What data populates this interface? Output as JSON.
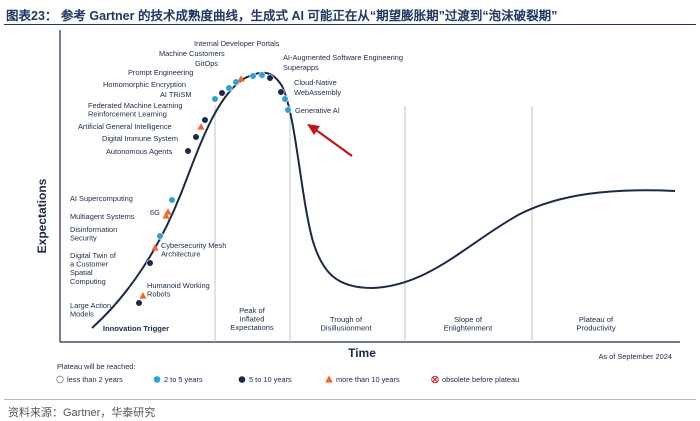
{
  "caption": "图表23：  参考 Gartner 的技术成熟度曲线，生成式 AI 可能正在从“期望膨胀期”过渡到“泡沫破裂期”",
  "source": "资料来源：Gartner，华泰研究",
  "colors": {
    "curve": "#1b2a4a",
    "two_to_five": "#2e9fd8",
    "five_to_ten": "#1b2a4a",
    "more_than_ten": "#f26522",
    "arrow": "#c0141c",
    "phase_divider": "#b8b8b8"
  },
  "chart_data": {
    "type": "scatter",
    "title": "",
    "xlabel": "Time",
    "ylabel": "Expectations",
    "as_of": "As of September 2024",
    "phases": [
      {
        "key": "innovation",
        "lines": [
          "Innovation Trigger"
        ]
      },
      {
        "key": "peak",
        "lines": [
          "Peak of",
          "Inflated",
          "Expectations"
        ]
      },
      {
        "key": "trough",
        "lines": [
          "Trough of",
          "Disillusionment"
        ]
      },
      {
        "key": "slope",
        "lines": [
          "Slope of",
          "Enlightenment"
        ]
      },
      {
        "key": "plateau",
        "lines": [
          "Plateau of",
          "Productivity"
        ]
      }
    ],
    "legend_title": "Plateau will be reached:",
    "legend": [
      {
        "key": "lt2",
        "label": "less than 2 years",
        "symbol": "open-circle"
      },
      {
        "key": "2to5",
        "label": "2 to 5 years",
        "symbol": "blue-dot"
      },
      {
        "key": "5to10",
        "label": "5 to 10 years",
        "symbol": "navy-dot"
      },
      {
        "key": "gt10",
        "label": "more than 10 years",
        "symbol": "orange-triangle"
      },
      {
        "key": "obsolete",
        "label": "obsolete before plateau",
        "symbol": "crossed-circle"
      }
    ],
    "technologies": [
      {
        "name": "Large Action Models",
        "lines": [
          "Large Action",
          "Models"
        ],
        "phase": "innovation",
        "category": "5to10"
      },
      {
        "name": "Humanoid Working Robots",
        "lines": [
          "Humanoid Working",
          "Robots"
        ],
        "phase": "innovation",
        "category": "gt10"
      },
      {
        "name": "Digital Twin of a Customer Spatial Computing",
        "lines": [
          "Digital Twin of",
          "a Customer",
          "Spatial",
          "Computing"
        ],
        "phase": "innovation",
        "category": "5to10"
      },
      {
        "name": "Cybersecurity Mesh Architecture",
        "lines": [
          "Cybersecurity Mesh",
          "Architecture"
        ],
        "phase": "innovation",
        "category": "gt10"
      },
      {
        "name": "Disinformation Security",
        "lines": [
          "Disinformation",
          "Security"
        ],
        "phase": "innovation",
        "category": "2to5"
      },
      {
        "name": "Multiagent Systems",
        "lines": [
          "Multiagent Systems"
        ],
        "phase": "innovation",
        "category": "gt10"
      },
      {
        "name": "6G",
        "lines": [
          "6G"
        ],
        "phase": "innovation",
        "category": "gt10"
      },
      {
        "name": "AI Supercomputing",
        "lines": [
          "AI Supercomputing"
        ],
        "phase": "innovation",
        "category": "2to5"
      },
      {
        "name": "Autonomous Agents",
        "lines": [
          "Autonomous Agents"
        ],
        "phase": "innovation",
        "category": "5to10"
      },
      {
        "name": "Digital Immune System",
        "lines": [
          "Digital Immune System"
        ],
        "phase": "innovation",
        "category": "5to10"
      },
      {
        "name": "Artificial General Intelligence",
        "lines": [
          "Artificial General Intelligence"
        ],
        "phase": "innovation",
        "category": "gt10"
      },
      {
        "name": "Federated Machine Learning Reinforcement Learning",
        "lines": [
          "Federated Machine Learning",
          "Reinforcement Learning"
        ],
        "phase": "peak",
        "category": "5to10"
      },
      {
        "name": "AI TRiSM",
        "lines": [
          "AI TRiSM"
        ],
        "phase": "peak",
        "category": "2to5"
      },
      {
        "name": "Homomorphic Encryption",
        "lines": [
          "Homomorphic Encryption"
        ],
        "phase": "peak",
        "category": "5to10"
      },
      {
        "name": "Prompt Engineering",
        "lines": [
          "Prompt Engineering"
        ],
        "phase": "peak",
        "category": "2to5"
      },
      {
        "name": "GitOps",
        "lines": [
          "GitOps"
        ],
        "phase": "peak",
        "category": "2to5"
      },
      {
        "name": "Machine Customers",
        "lines": [
          "Machine Customers"
        ],
        "phase": "peak",
        "category": "gt10"
      },
      {
        "name": "Internal Developer Portals",
        "lines": [
          "Internal Developer Portals"
        ],
        "phase": "peak",
        "category": "2to5"
      },
      {
        "name": "AI-Augmented Software Engineering",
        "lines": [
          "AI-Augmented Software Engineering"
        ],
        "phase": "peak",
        "category": "2to5"
      },
      {
        "name": "Superapps",
        "lines": [
          "Superapps"
        ],
        "phase": "peak",
        "category": "5to10"
      },
      {
        "name": "Cloud-Native",
        "lines": [
          "Cloud-Native"
        ],
        "phase": "peak",
        "category": "5to10"
      },
      {
        "name": "WebAssembly",
        "lines": [
          "WebAssembly"
        ],
        "phase": "peak",
        "category": "2to5"
      },
      {
        "name": "Generative AI",
        "lines": [
          "Generative AI"
        ],
        "phase": "peak",
        "category": "2to5"
      }
    ],
    "annotation": "Generative AI"
  }
}
